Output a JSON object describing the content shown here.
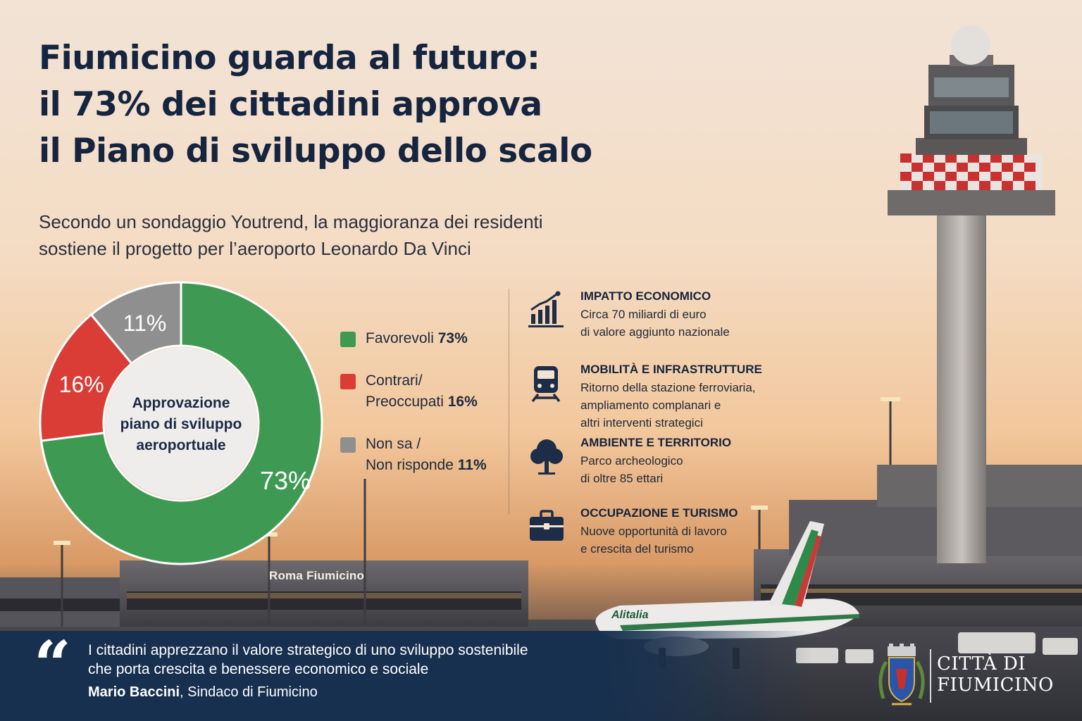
{
  "headline": {
    "line1": "Fiumicino guarda al futuro:",
    "line2": "il 73% dei cittadini approva",
    "line3": "il Piano di sviluppo dello scalo"
  },
  "subtitle": {
    "line1": "Secondo un sondaggio Youtrend, la maggioranza dei residenti",
    "line2": "sostiene il progetto per l’aeroporto Leonardo Da Vinci"
  },
  "chart_data": {
    "type": "pie",
    "center_label": [
      "Approvazione",
      "piano di sviluppo",
      "aeroportuale"
    ],
    "slices": [
      {
        "label": "Favorevoli",
        "value": 73,
        "display": "73%",
        "color": "#3e9a53"
      },
      {
        "label": "Contrari/ Preoccupati",
        "value": 16,
        "display": "16%",
        "color": "#da3c36"
      },
      {
        "label": "Non sa / Non risponde",
        "value": 11,
        "display": "11%",
        "color": "#8f8f8f"
      }
    ]
  },
  "legend": [
    {
      "line1": "Favorevoli",
      "line2": "",
      "value": "73%",
      "color": "#3e9a53"
    },
    {
      "line1": "Contrari/",
      "line2": "Preoccupati",
      "value": "16%",
      "color": "#da3c36"
    },
    {
      "line1": "Non sa /",
      "line2": "Non risponde",
      "value": "11%",
      "color": "#8f8f8f"
    }
  ],
  "impacts": [
    {
      "icon": "growth-chart-icon",
      "title": "IMPATTO ECONOMICO",
      "desc": [
        "Circa 70 miliardi di euro",
        "di valore aggiunto nazionale"
      ]
    },
    {
      "icon": "train-icon",
      "title": "MOBILITÀ E INFRASTRUTTURE",
      "desc": [
        "Ritorno della stazione ferroviaria,",
        "ampliamento complanari e",
        "altri interventi strategici"
      ]
    },
    {
      "icon": "tree-icon",
      "title": "AMBIENTE E TERRITORIO",
      "desc": [
        "Parco archeologico",
        "di oltre 85 ettari"
      ]
    },
    {
      "icon": "briefcase-icon",
      "title": "OCCUPAZIONE E TURISMO",
      "desc": [
        "Nuove opportunità di lavoro",
        "e crescita del turismo"
      ]
    }
  ],
  "scene": {
    "terminal_sign": "Roma Fiumicino",
    "plane_livery": "Alitalia"
  },
  "quote": {
    "line1": "I cittadini apprezzano il valore strategico di uno sviluppo sostenibile",
    "line2": "che porta crescita e benessere economico e sociale",
    "author": "Mario Baccini",
    "role": ", Sindaco di Fiumicino"
  },
  "logo": {
    "line1": "CITTÀ DI",
    "line2": "FIUMICINO"
  },
  "colors": {
    "navy": "#15243f",
    "band": "#17304f"
  }
}
